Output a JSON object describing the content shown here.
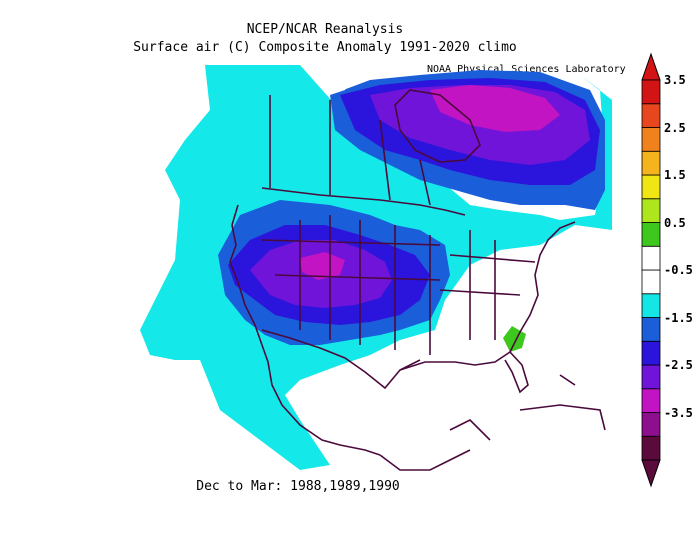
{
  "header": {
    "title": "NCEP/NCAR Reanalysis",
    "subtitle": "Surface air (C) Composite Anomaly 1991-2020 climo",
    "credit": "NOAA Physical Sciences Laboratory"
  },
  "footer": {
    "period": "Dec to Mar: 1988,1989,1990"
  },
  "colorbar": {
    "labels": [
      "3.5",
      "2.5",
      "1.5",
      "0.5",
      "-0.5",
      "-1.5",
      "-2.5",
      "-3.5"
    ],
    "colors": [
      "#5b0a3c",
      "#8e0f8e",
      "#c214c2",
      "#6f14d8",
      "#2b14dc",
      "#1a5fd9",
      "#14e6e6",
      "#ffffff",
      "#ffffff",
      "#3ec81e",
      "#aee61e",
      "#f0e614",
      "#f5b41e",
      "#f0821e",
      "#e8461e",
      "#d21414"
    ]
  },
  "legend_colors": {
    "cyan": "#14e8e8",
    "blue": "#1a5fd9",
    "indigo": "#2b14dc",
    "violet": "#6f14d8",
    "magenta": "#c214c2",
    "green": "#3ec81e",
    "boundary": "#4a0a3c"
  }
}
